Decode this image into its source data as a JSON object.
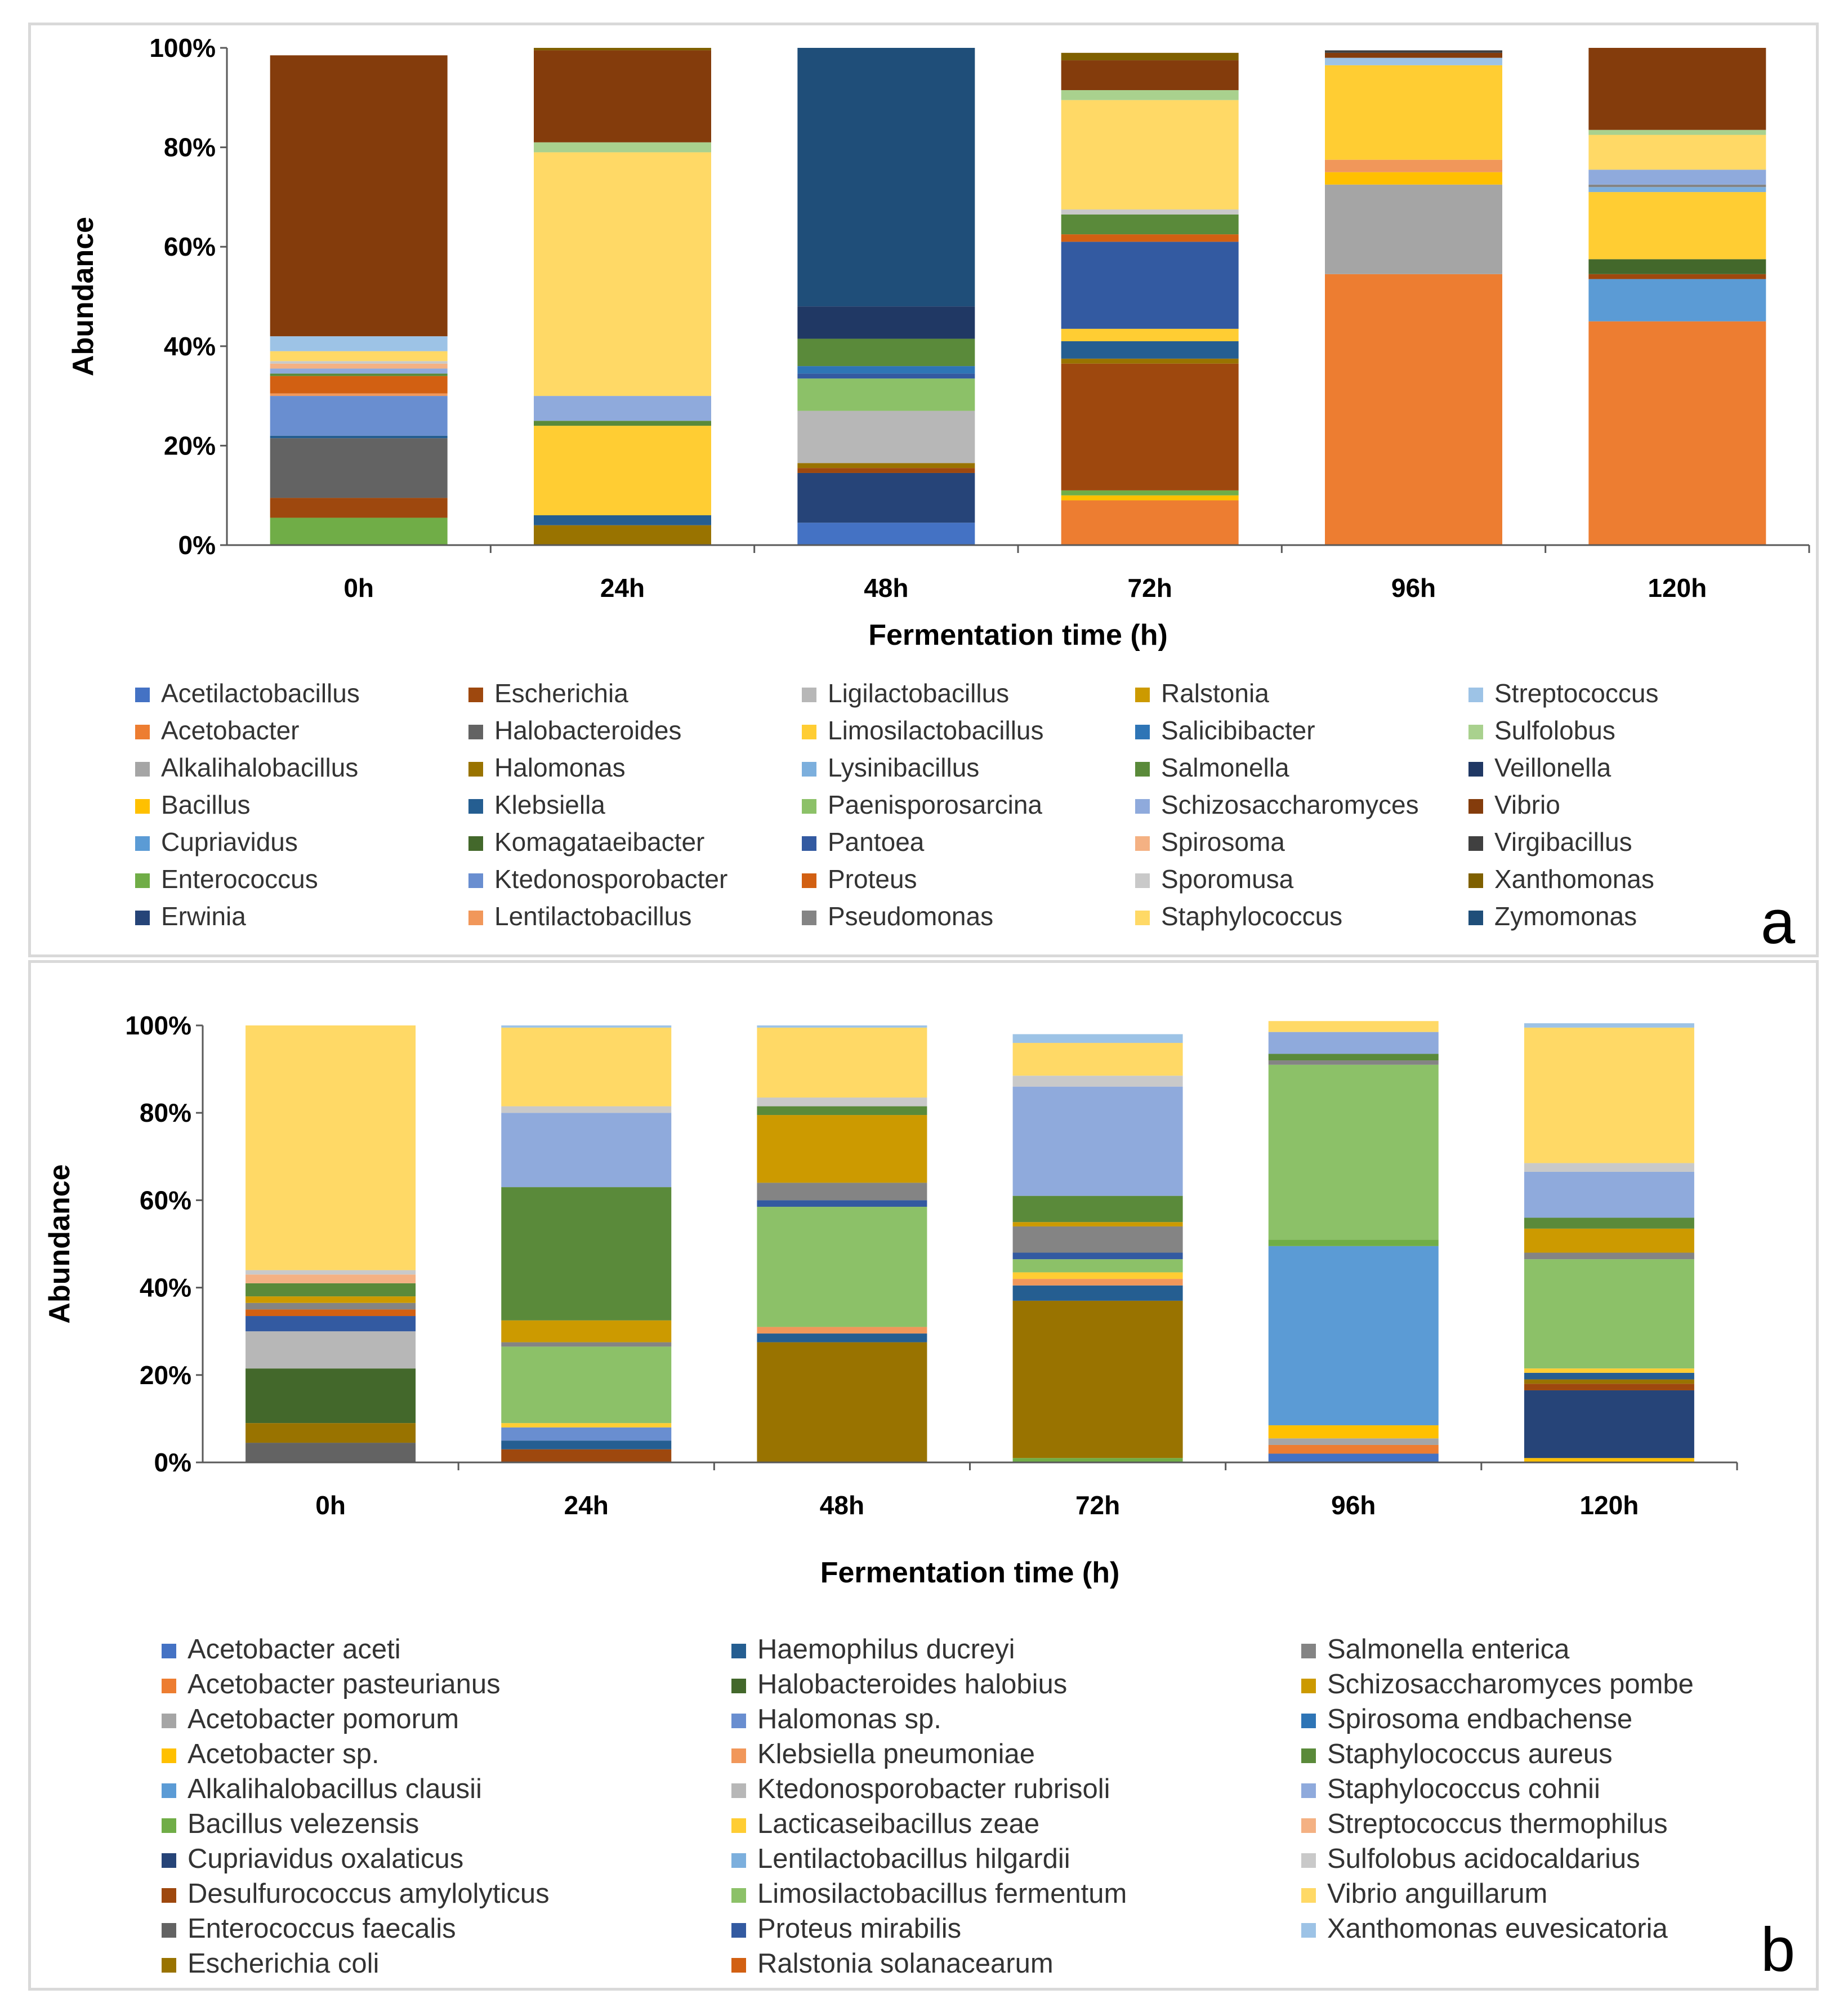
{
  "chart_data": [
    {
      "panel_label": "a",
      "type": "bar",
      "stacked": true,
      "xlabel": "Fermentation time (h)",
      "ylabel": "Abundance",
      "yticks": [
        "0%",
        "20%",
        "40%",
        "60%",
        "80%",
        "100%"
      ],
      "ylim": [
        0,
        100
      ],
      "categories": [
        "0h",
        "24h",
        "48h",
        "72h",
        "96h",
        "120h"
      ],
      "legend_position": "bottom",
      "series": [
        {
          "name": "Acetilactobacillus",
          "color": "#4472C4",
          "values": [
            0,
            0,
            4.5,
            0,
            0,
            0
          ]
        },
        {
          "name": "Acetobacter",
          "color": "#ED7D31",
          "values": [
            0,
            0,
            0,
            9,
            54.5,
            45
          ]
        },
        {
          "name": "Alkalihalobacillus",
          "color": "#A5A5A5",
          "values": [
            0,
            0,
            0,
            0,
            18,
            0
          ]
        },
        {
          "name": "Bacillus",
          "color": "#FFC000",
          "values": [
            0,
            0,
            0,
            1,
            2.5,
            0
          ]
        },
        {
          "name": "Cupriavidus",
          "color": "#5B9BD5",
          "values": [
            0,
            0,
            0,
            0,
            0,
            8.5
          ]
        },
        {
          "name": "Enterococcus",
          "color": "#70AD47",
          "values": [
            5.5,
            0,
            0,
            1,
            0,
            0
          ]
        },
        {
          "name": "Erwinia",
          "color": "#264478",
          "values": [
            0,
            0,
            10,
            0,
            0,
            0
          ]
        },
        {
          "name": "Escherichia",
          "color": "#9E480E",
          "values": [
            4,
            0,
            1,
            25.5,
            0,
            1
          ]
        },
        {
          "name": "Halobacteroides",
          "color": "#636363",
          "values": [
            12,
            0,
            0,
            0,
            0,
            0
          ]
        },
        {
          "name": "Halomonas",
          "color": "#997300",
          "values": [
            0,
            4,
            1,
            1,
            0,
            0
          ]
        },
        {
          "name": "Klebsiella",
          "color": "#255E91",
          "values": [
            0.5,
            2,
            0,
            3.5,
            0,
            0
          ]
        },
        {
          "name": "Komagataeibacter",
          "color": "#43682B",
          "values": [
            0,
            0,
            0,
            0,
            0,
            3
          ]
        },
        {
          "name": "Ktedonosporobacter",
          "color": "#698ED0",
          "values": [
            8,
            0,
            0,
            0,
            0,
            0
          ]
        },
        {
          "name": "Lentilactobacillus",
          "color": "#F1975A",
          "values": [
            0.5,
            0,
            0,
            0,
            2.5,
            0
          ]
        },
        {
          "name": "Ligilactobacillus",
          "color": "#B7B7B7",
          "values": [
            0,
            0,
            10.5,
            0,
            0,
            0
          ]
        },
        {
          "name": "Limosilactobacillus",
          "color": "#FFCD33",
          "values": [
            0,
            18,
            0,
            2.5,
            19,
            13.5
          ]
        },
        {
          "name": "Lysinibacillus",
          "color": "#7CAFDD",
          "values": [
            0,
            0,
            0,
            0,
            0,
            1
          ]
        },
        {
          "name": "Paenisporosarcina",
          "color": "#8CC168",
          "values": [
            0,
            0,
            6.5,
            0,
            0,
            0
          ]
        },
        {
          "name": "Pantoea",
          "color": "#335AA1",
          "values": [
            0,
            0,
            1,
            17.5,
            0,
            0
          ]
        },
        {
          "name": "Proteus",
          "color": "#D26012",
          "values": [
            3.5,
            0,
            0,
            1.5,
            0,
            0
          ]
        },
        {
          "name": "Pseudomonas",
          "color": "#848484",
          "values": [
            0,
            0,
            0,
            0,
            0,
            0.5
          ]
        },
        {
          "name": "Ralstonia",
          "color": "#CC9A00",
          "values": [
            0,
            0,
            0,
            0,
            0,
            0
          ]
        },
        {
          "name": "Salicibibacter",
          "color": "#2E75B6",
          "values": [
            0,
            0,
            1.5,
            0,
            0,
            0
          ]
        },
        {
          "name": "Salmonella",
          "color": "#5A8A3A",
          "values": [
            0.5,
            1,
            5.5,
            4,
            0,
            0
          ]
        },
        {
          "name": "Schizosaccharomyces",
          "color": "#8FAADC",
          "values": [
            1,
            5,
            0,
            0,
            0,
            3
          ]
        },
        {
          "name": "Spirosoma",
          "color": "#F4B183",
          "values": [
            1,
            0,
            0,
            0,
            0,
            0
          ]
        },
        {
          "name": "Sporomusa",
          "color": "#C9C9C9",
          "values": [
            0.5,
            0,
            0,
            1,
            0,
            0
          ]
        },
        {
          "name": "Staphylococcus",
          "color": "#FFD966",
          "values": [
            2,
            49,
            0,
            22,
            0,
            7
          ]
        },
        {
          "name": "Streptococcus",
          "color": "#9DC3E6",
          "values": [
            3,
            0,
            0,
            0,
            1.5,
            0
          ]
        },
        {
          "name": "Sulfolobus",
          "color": "#A9D18E",
          "values": [
            0,
            2,
            0,
            2,
            0,
            1
          ]
        },
        {
          "name": "Veillonella",
          "color": "#203864",
          "values": [
            0,
            0,
            6.5,
            0,
            0,
            0
          ]
        },
        {
          "name": "Vibrio",
          "color": "#843C0C",
          "values": [
            56.5,
            18.5,
            0,
            6,
            1,
            16.5
          ]
        },
        {
          "name": "Virgibacillus",
          "color": "#404040",
          "values": [
            0,
            0,
            0,
            0,
            0.5,
            0
          ]
        },
        {
          "name": "Xanthomonas",
          "color": "#7F6000",
          "values": [
            0,
            0.5,
            0,
            1.5,
            0,
            0
          ]
        },
        {
          "name": "Zymomonas",
          "color": "#1F4E79",
          "values": [
            0,
            0,
            52,
            0,
            0,
            0
          ]
        }
      ]
    },
    {
      "panel_label": "b",
      "type": "bar",
      "stacked": true,
      "xlabel": "Fermentation time (h)",
      "ylabel": "Abundance",
      "yticks": [
        "0%",
        "20%",
        "40%",
        "60%",
        "80%",
        "100%"
      ],
      "ylim": [
        0,
        100
      ],
      "categories": [
        "0h",
        "24h",
        "48h",
        "72h",
        "96h",
        "120h"
      ],
      "legend_position": "bottom",
      "series": [
        {
          "name": "Acetobacter aceti",
          "color": "#4472C4",
          "values": [
            0,
            0,
            0,
            0,
            2,
            0
          ]
        },
        {
          "name": "Acetobacter pasteurianus",
          "color": "#ED7D31",
          "values": [
            0,
            0,
            0,
            0,
            2,
            0
          ]
        },
        {
          "name": "Acetobacter pomorum",
          "color": "#A5A5A5",
          "values": [
            0,
            0,
            0,
            0,
            1.5,
            0
          ]
        },
        {
          "name": "Acetobacter sp.",
          "color": "#FFC000",
          "values": [
            0,
            0,
            0,
            0,
            3,
            1
          ]
        },
        {
          "name": "Alkalihalobacillus clausii",
          "color": "#5B9BD5",
          "values": [
            0,
            0,
            0,
            0,
            41,
            0
          ]
        },
        {
          "name": "Bacillus velezensis",
          "color": "#70AD47",
          "values": [
            0,
            0,
            0,
            1,
            1.5,
            0
          ]
        },
        {
          "name": "Cupriavidus oxalaticus",
          "color": "#264478",
          "values": [
            0,
            0,
            0,
            0,
            0,
            15.5
          ]
        },
        {
          "name": "Desulfurococcus amylolyticus",
          "color": "#9E480E",
          "values": [
            0,
            3,
            0,
            0,
            0,
            1.5
          ]
        },
        {
          "name": "Enterococcus faecalis",
          "color": "#636363",
          "values": [
            4.5,
            0,
            0,
            0,
            0,
            0
          ]
        },
        {
          "name": "Escherichia coli",
          "color": "#997300",
          "values": [
            4.5,
            0,
            27.5,
            36,
            0,
            1
          ]
        },
        {
          "name": "Haemophilus ducreyi",
          "color": "#255E91",
          "values": [
            0,
            2,
            2,
            3.5,
            0,
            1.5
          ]
        },
        {
          "name": "Halobacteroides halobius",
          "color": "#43682B",
          "values": [
            12.5,
            0,
            0,
            0,
            0,
            0
          ]
        },
        {
          "name": "Halomonas sp.",
          "color": "#698ED0",
          "values": [
            0,
            3,
            0,
            0,
            0,
            0
          ]
        },
        {
          "name": "Klebsiella pneumoniae",
          "color": "#F1975A",
          "values": [
            0,
            0,
            1.5,
            1.5,
            0,
            0
          ]
        },
        {
          "name": "Ktedonosporobacter rubrisoli",
          "color": "#B7B7B7",
          "values": [
            8.5,
            0,
            0,
            0,
            0,
            0
          ]
        },
        {
          "name": "Lacticaseibacillus zeae",
          "color": "#FFCD33",
          "values": [
            0,
            1,
            0,
            1.5,
            0,
            1
          ]
        },
        {
          "name": "Lentilactobacillus hilgardii",
          "color": "#7CAFDD",
          "values": [
            0,
            0,
            0,
            0,
            0,
            0
          ]
        },
        {
          "name": "Limosilactobacillus fermentum",
          "color": "#8CC168",
          "values": [
            0,
            17.5,
            27.5,
            3,
            40,
            25
          ]
        },
        {
          "name": "Proteus mirabilis",
          "color": "#335AA1",
          "values": [
            3.5,
            0,
            1.5,
            1.5,
            0,
            0
          ]
        },
        {
          "name": "Ralstonia solanacearum",
          "color": "#D26012",
          "values": [
            1.5,
            0,
            0,
            0,
            0,
            0
          ]
        },
        {
          "name": "Salmonella enterica",
          "color": "#848484",
          "values": [
            1.5,
            1,
            4,
            6,
            1,
            1.5
          ]
        },
        {
          "name": "Schizosaccharomyces pombe",
          "color": "#CC9A00",
          "values": [
            1.5,
            5,
            15.5,
            1,
            0,
            5.5
          ]
        },
        {
          "name": "Spirosoma endbachense",
          "color": "#2E75B6",
          "values": [
            0,
            0,
            0,
            0,
            0,
            0
          ]
        },
        {
          "name": "Staphylococcus aureus",
          "color": "#5A8A3A",
          "values": [
            3,
            30.5,
            2,
            6,
            1.5,
            2.5
          ]
        },
        {
          "name": "Staphylococcus cohnii",
          "color": "#8FAADC",
          "values": [
            0,
            17,
            0,
            25,
            5,
            10.5
          ]
        },
        {
          "name": "Streptococcus thermophilus",
          "color": "#F4B183",
          "values": [
            2,
            0,
            0,
            0,
            0,
            0
          ]
        },
        {
          "name": "Sulfolobus acidocaldarius",
          "color": "#C9C9C9",
          "values": [
            1,
            1.5,
            2,
            2.5,
            0,
            2
          ]
        },
        {
          "name": "Vibrio anguillarum",
          "color": "#FFD966",
          "values": [
            56,
            18,
            16,
            7.5,
            2.5,
            31
          ]
        },
        {
          "name": "Xanthomonas euvesicatoria",
          "color": "#9DC3E6",
          "values": [
            0,
            0.5,
            0.5,
            2,
            0,
            1
          ]
        }
      ]
    }
  ]
}
